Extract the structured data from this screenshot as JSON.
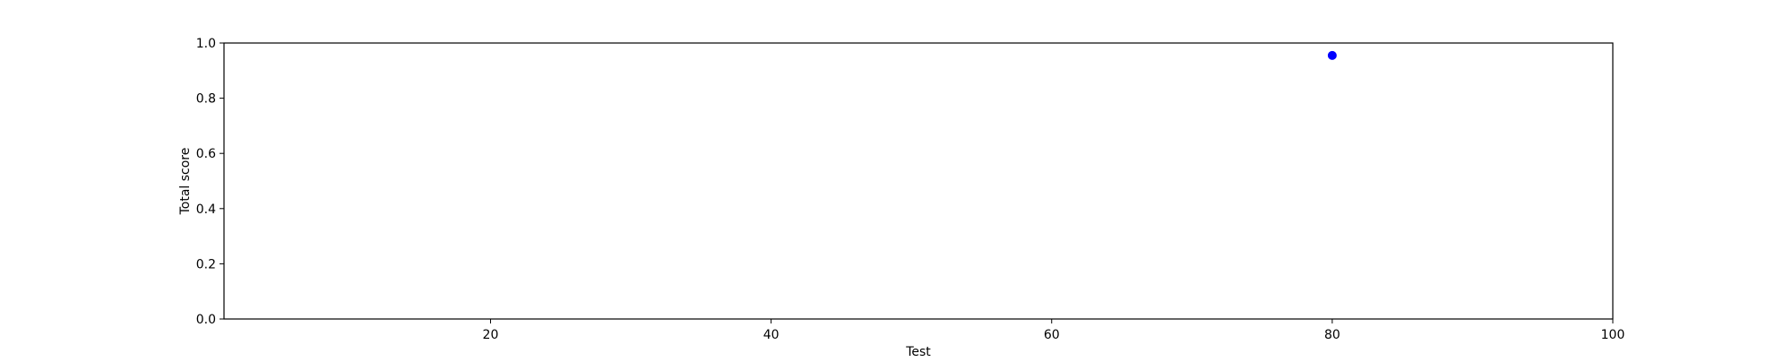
{
  "chart_data": {
    "type": "scatter",
    "title": "",
    "xlabel": "Test",
    "ylabel": "Total score",
    "xlim": [
      1,
      100
    ],
    "ylim": [
      0.0,
      1.0
    ],
    "xticks": [
      20,
      40,
      60,
      80,
      100
    ],
    "yticks": [
      0.0,
      0.2,
      0.4,
      0.6,
      0.8,
      1.0
    ],
    "xtick_labels": [
      "20",
      "40",
      "60",
      "80",
      "100"
    ],
    "ytick_labels": [
      "0.0",
      "0.2",
      "0.4",
      "0.6",
      "0.8",
      "1.0"
    ],
    "grid": false,
    "series": [
      {
        "color": "#0000ff",
        "points": [
          {
            "x": 80,
            "y": 0.955
          }
        ]
      }
    ]
  }
}
